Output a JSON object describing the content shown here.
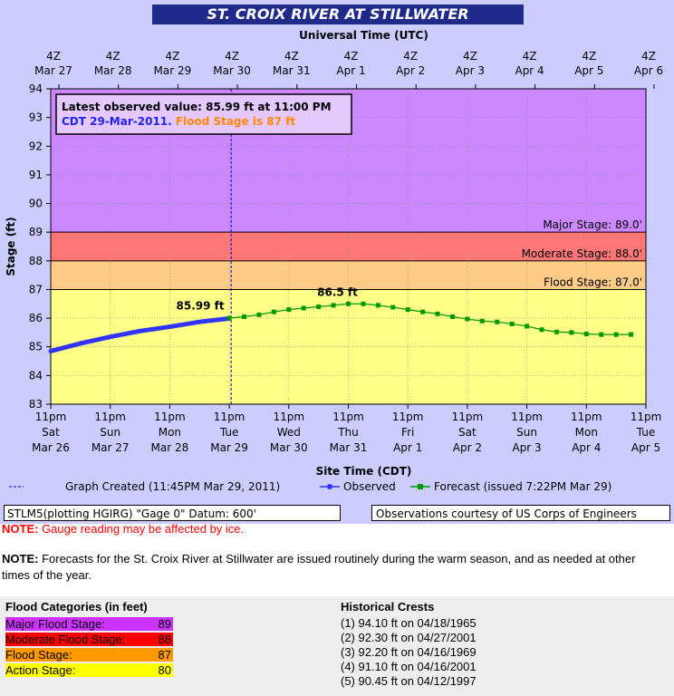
{
  "title": "ST. CROIX RIVER AT STILLWATER",
  "chart_data": {
    "type": "line",
    "top_axis_label": "Universal Time (UTC)",
    "top_ticks": [
      {
        "l1": "4Z",
        "l2": "Mar 27"
      },
      {
        "l1": "4Z",
        "l2": "Mar 28"
      },
      {
        "l1": "4Z",
        "l2": "Mar 29"
      },
      {
        "l1": "4Z",
        "l2": "Mar 30"
      },
      {
        "l1": "4Z",
        "l2": "Mar 31"
      },
      {
        "l1": "4Z",
        "l2": "Apr 1"
      },
      {
        "l1": "4Z",
        "l2": "Apr 2"
      },
      {
        "l1": "4Z",
        "l2": "Apr 3"
      },
      {
        "l1": "4Z",
        "l2": "Apr 4"
      },
      {
        "l1": "4Z",
        "l2": "Apr 5"
      },
      {
        "l1": "4Z",
        "l2": "Apr 6"
      }
    ],
    "bottom_axis_label": "Site Time (CDT)",
    "bottom_ticks": [
      {
        "l1": "11pm",
        "l2": "Sat",
        "l3": "Mar 26"
      },
      {
        "l1": "11pm",
        "l2": "Sun",
        "l3": "Mar 27"
      },
      {
        "l1": "11pm",
        "l2": "Mon",
        "l3": "Mar 28"
      },
      {
        "l1": "11pm",
        "l2": "Tue",
        "l3": "Mar 29"
      },
      {
        "l1": "11pm",
        "l2": "Wed",
        "l3": "Mar 30"
      },
      {
        "l1": "11pm",
        "l2": "Thu",
        "l3": "Mar 31"
      },
      {
        "l1": "11pm",
        "l2": "Fri",
        "l3": "Apr 1"
      },
      {
        "l1": "11pm",
        "l2": "Sat",
        "l3": "Apr 2"
      },
      {
        "l1": "11pm",
        "l2": "Sun",
        "l3": "Apr 3"
      },
      {
        "l1": "11pm",
        "l2": "Mon",
        "l3": "Apr 4"
      },
      {
        "l1": "11pm",
        "l2": "Tue",
        "l3": "Apr 5"
      }
    ],
    "ylabel": "Stage (ft)",
    "ylim": [
      83,
      94
    ],
    "yticks": [
      83,
      84,
      85,
      86,
      87,
      88,
      89,
      90,
      91,
      92,
      93,
      94
    ],
    "xlim": [
      "2011-03-26 23:00",
      "2011-04-05 23:00"
    ],
    "bands": [
      {
        "from": 89,
        "to": 94,
        "color": "#cc88ff"
      },
      {
        "from": 88,
        "to": 89,
        "color": "#ff7777"
      },
      {
        "from": 87,
        "to": 88,
        "color": "#ffcc88"
      },
      {
        "from": 83,
        "to": 87,
        "color": "#ffff88"
      }
    ],
    "stage_lines": [
      {
        "value": 89,
        "label": "Major Stage: 89.0'"
      },
      {
        "value": 88,
        "label": "Moderate Stage: 88.0'"
      },
      {
        "value": 87,
        "label": "Flood Stage: 87.0'"
      }
    ],
    "graph_created": "2011-03-29 23:45",
    "info_box": {
      "line1": "Latest observed value: 85.99 ft at 11:00 PM",
      "line2": "CDT 29-Mar-2011.",
      "line2b": "Flood Stage is 87 ft"
    },
    "series": [
      {
        "name": "Observed",
        "color": "#3333ff",
        "points": [
          [
            "2011-03-26 23:00",
            84.85
          ],
          [
            "2011-03-27 11:00",
            85.12
          ],
          [
            "2011-03-27 23:00",
            85.35
          ],
          [
            "2011-03-28 11:00",
            85.55
          ],
          [
            "2011-03-28 23:00",
            85.7
          ],
          [
            "2011-03-29 11:00",
            85.87
          ],
          [
            "2011-03-29 23:00",
            85.99
          ]
        ],
        "label": "85.99 ft"
      },
      {
        "name": "Forecast (issued 7:22PM Mar 29)",
        "color": "#009900",
        "points": [
          [
            "2011-03-29 23:00",
            86.0
          ],
          [
            "2011-03-30 05:00",
            86.05
          ],
          [
            "2011-03-30 11:00",
            86.12
          ],
          [
            "2011-03-30 17:00",
            86.22
          ],
          [
            "2011-03-30 23:00",
            86.3
          ],
          [
            "2011-03-31 05:00",
            86.35
          ],
          [
            "2011-03-31 11:00",
            86.4
          ],
          [
            "2011-03-31 17:00",
            86.45
          ],
          [
            "2011-03-31 23:00",
            86.5
          ],
          [
            "2011-04-01 05:00",
            86.5
          ],
          [
            "2011-04-01 11:00",
            86.45
          ],
          [
            "2011-04-01 17:00",
            86.38
          ],
          [
            "2011-04-01 23:00",
            86.3
          ],
          [
            "2011-04-02 05:00",
            86.22
          ],
          [
            "2011-04-02 11:00",
            86.15
          ],
          [
            "2011-04-02 17:00",
            86.05
          ],
          [
            "2011-04-02 23:00",
            85.97
          ],
          [
            "2011-04-03 05:00",
            85.9
          ],
          [
            "2011-04-03 11:00",
            85.87
          ],
          [
            "2011-04-03 17:00",
            85.8
          ],
          [
            "2011-04-03 23:00",
            85.72
          ],
          [
            "2011-04-04 05:00",
            85.6
          ],
          [
            "2011-04-04 11:00",
            85.52
          ],
          [
            "2011-04-04 17:00",
            85.5
          ],
          [
            "2011-04-04 23:00",
            85.45
          ],
          [
            "2011-04-05 05:00",
            85.43
          ],
          [
            "2011-04-05 11:00",
            85.43
          ],
          [
            "2011-04-05 17:00",
            85.43
          ]
        ],
        "label": "86.5 ft",
        "label_at": [
          "2011-03-31 23:00",
          86.5
        ]
      }
    ],
    "legend": {
      "created": "Graph Created (11:45PM Mar 29, 2011)",
      "observed": "Observed",
      "forecast": "Forecast (issued 7:22PM Mar 29)"
    }
  },
  "footer_left": "STLM5(plotting HGIRG) \"Gage 0\" Datum: 600'",
  "footer_right": "Observations courtesy of US Corps of Engineers",
  "note1_label": "NOTE:",
  "note1_text": " Gauge reading may be affected by ice.",
  "note2_label": "NOTE:",
  "note2_text": " Forecasts for the St. Croix River at Stillwater are issued routinely during the warm season, and as needed at other times of the year.",
  "flood_categories": {
    "title": "Flood Categories (in feet)",
    "rows": [
      {
        "label": "Major Flood Stage:",
        "value": "89",
        "color": "#cc33ff"
      },
      {
        "label": "Moderate Flood Stage:",
        "value": "88",
        "color": "#ff0000"
      },
      {
        "label": "Flood Stage:",
        "value": "87",
        "color": "#ff9900"
      },
      {
        "label": "Action Stage:",
        "value": "80",
        "color": "#ffff00"
      }
    ]
  },
  "historical_crests": {
    "title": "Historical Crests",
    "items": [
      "(1) 94.10 ft on 04/18/1965",
      "(2) 92.30 ft on 04/27/2001",
      "(3) 92.20 ft on 04/16/1969",
      "(4) 91.10 ft on 04/16/2001",
      "(5) 90.45 ft on 04/12/1997"
    ]
  }
}
